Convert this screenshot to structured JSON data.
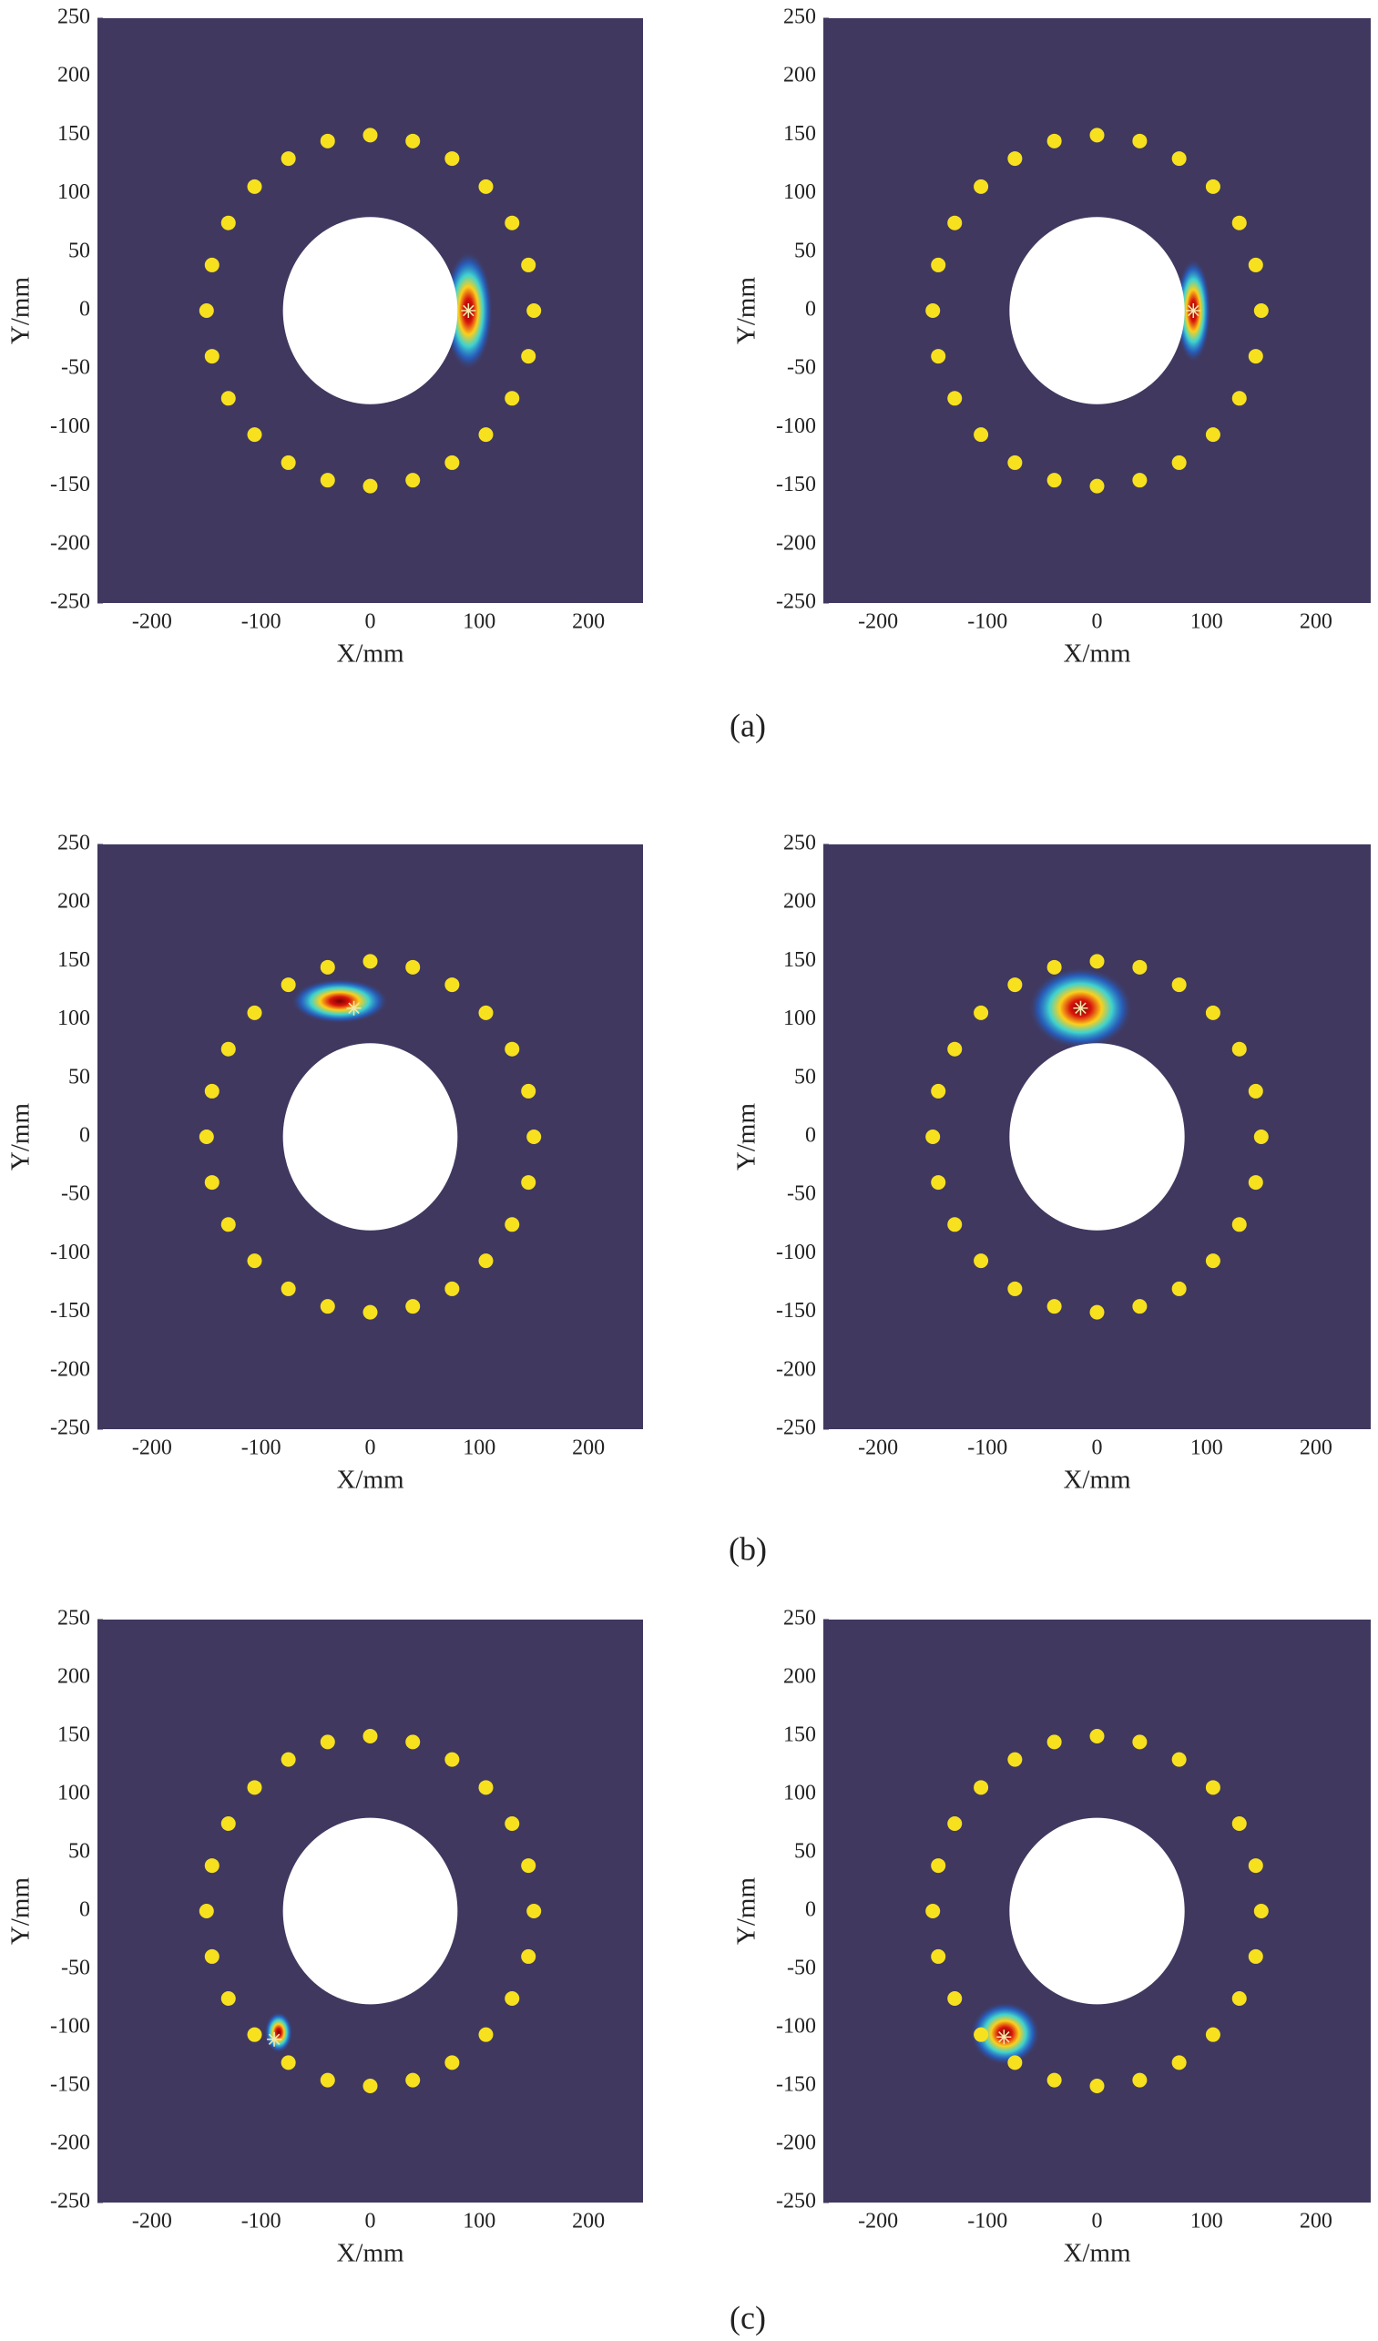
{
  "captions": [
    "(a)",
    "(b)",
    "(c)"
  ],
  "chart_data": [
    {
      "type": "heatmap",
      "xlabel": "X/mm",
      "ylabel": "Y/mm",
      "xlim": [
        -250,
        250
      ],
      "ylim": [
        -250,
        250
      ],
      "xticks": [
        -200,
        -100,
        0,
        100,
        200
      ],
      "yticks": [
        -250,
        -200,
        -150,
        -100,
        -50,
        0,
        50,
        100,
        150,
        200,
        250
      ],
      "background": "#40385f",
      "hole_radius": 80,
      "sensors": {
        "color": "#f7e11e",
        "x": [
          150,
          145,
          130,
          106,
          75,
          39,
          0,
          -39,
          -75,
          -106,
          -130,
          -145,
          -150,
          -145,
          -130,
          -106,
          -75,
          -39,
          0,
          39,
          75,
          106,
          130,
          145
        ],
        "y": [
          0,
          39,
          75,
          106,
          130,
          145,
          150,
          145,
          130,
          106,
          75,
          39,
          0,
          -39,
          -75,
          -106,
          -130,
          -145,
          -150,
          -145,
          -130,
          -106,
          -75,
          -39
        ]
      },
      "peak": {
        "x": 90,
        "y": 0,
        "sx": 14,
        "sy": 32
      },
      "marker": {
        "x": 90,
        "y": 0
      }
    },
    {
      "type": "heatmap",
      "xlabel": "X/mm",
      "ylabel": "Y/mm",
      "xlim": [
        -250,
        250
      ],
      "ylim": [
        -250,
        250
      ],
      "xticks": [
        -200,
        -100,
        0,
        100,
        200
      ],
      "yticks": [
        -250,
        -200,
        -150,
        -100,
        -50,
        0,
        50,
        100,
        150,
        200,
        250
      ],
      "background": "#40385f",
      "hole_radius": 80,
      "sensors": {
        "color": "#f7e11e",
        "x": [
          150,
          145,
          130,
          106,
          75,
          39,
          0,
          -39,
          -75,
          -106,
          -130,
          -145,
          -150,
          -145,
          -130,
          -106,
          -75,
          -39,
          0,
          39,
          75,
          106,
          130,
          145
        ],
        "y": [
          0,
          39,
          75,
          106,
          130,
          145,
          150,
          145,
          130,
          106,
          75,
          39,
          0,
          -39,
          -75,
          -106,
          -130,
          -145,
          -150,
          -145,
          -130,
          -106,
          -75,
          -39
        ]
      },
      "peak": {
        "x": 88,
        "y": 0,
        "sx": 10,
        "sy": 28
      },
      "marker": {
        "x": 88,
        "y": 0
      }
    },
    {
      "type": "heatmap",
      "xlabel": "X/mm",
      "ylabel": "Y/mm",
      "xlim": [
        -250,
        250
      ],
      "ylim": [
        -250,
        250
      ],
      "xticks": [
        -200,
        -100,
        0,
        100,
        200
      ],
      "yticks": [
        -250,
        -200,
        -150,
        -100,
        -50,
        0,
        50,
        100,
        150,
        200,
        250
      ],
      "background": "#40385f",
      "hole_radius": 80,
      "sensors": {
        "color": "#f7e11e",
        "x": [
          150,
          145,
          130,
          106,
          75,
          39,
          0,
          -39,
          -75,
          -106,
          -130,
          -145,
          -150,
          -145,
          -130,
          -106,
          -75,
          -39,
          0,
          39,
          75,
          106,
          130,
          145
        ],
        "y": [
          0,
          39,
          75,
          106,
          130,
          145,
          150,
          145,
          130,
          106,
          75,
          39,
          0,
          -39,
          -75,
          -106,
          -130,
          -145,
          -150,
          -145,
          -130,
          -106,
          -75,
          -39
        ]
      },
      "peak": {
        "x": -28,
        "y": 116,
        "sx": 28,
        "sy": 12
      },
      "marker": {
        "x": -15,
        "y": 110
      }
    },
    {
      "type": "heatmap",
      "xlabel": "X/mm",
      "ylabel": "Y/mm",
      "xlim": [
        -250,
        250
      ],
      "ylim": [
        -250,
        250
      ],
      "xticks": [
        -200,
        -100,
        0,
        100,
        200
      ],
      "yticks": [
        -250,
        -200,
        -150,
        -100,
        -50,
        0,
        50,
        100,
        150,
        200,
        250
      ],
      "background": "#40385f",
      "hole_radius": 80,
      "sensors": {
        "color": "#f7e11e",
        "x": [
          150,
          145,
          130,
          106,
          75,
          39,
          0,
          -39,
          -75,
          -106,
          -130,
          -145,
          -150,
          -145,
          -130,
          -106,
          -75,
          -39,
          0,
          39,
          75,
          106,
          130,
          145
        ],
        "y": [
          0,
          39,
          75,
          106,
          130,
          145,
          150,
          145,
          130,
          106,
          75,
          39,
          0,
          -39,
          -75,
          -106,
          -130,
          -145,
          -150,
          -145,
          -130,
          -106,
          -75,
          -39
        ]
      },
      "peak": {
        "x": -15,
        "y": 110,
        "sx": 30,
        "sy": 22
      },
      "marker": {
        "x": -15,
        "y": 110
      }
    },
    {
      "type": "heatmap",
      "xlabel": "X/mm",
      "ylabel": "Y/mm",
      "xlim": [
        -250,
        250
      ],
      "ylim": [
        -250,
        250
      ],
      "xticks": [
        -200,
        -100,
        0,
        100,
        200
      ],
      "yticks": [
        -250,
        -200,
        -150,
        -100,
        -50,
        0,
        50,
        100,
        150,
        200,
        250
      ],
      "background": "#40385f",
      "hole_radius": 80,
      "sensors": {
        "color": "#f7e11e",
        "x": [
          150,
          145,
          130,
          106,
          75,
          39,
          0,
          -39,
          -75,
          -106,
          -130,
          -145,
          -150,
          -145,
          -130,
          -106,
          -75,
          -39,
          0,
          39,
          75,
          106,
          130,
          145
        ],
        "y": [
          0,
          39,
          75,
          106,
          130,
          145,
          150,
          145,
          130,
          106,
          75,
          39,
          0,
          -39,
          -75,
          -106,
          -130,
          -145,
          -150,
          -145,
          -130,
          -106,
          -75,
          -39
        ]
      },
      "peak": {
        "x": -84,
        "y": -104,
        "sx": 8,
        "sy": 11
      },
      "marker": {
        "x": -88,
        "y": -110
      }
    },
    {
      "type": "heatmap",
      "xlabel": "X/mm",
      "ylabel": "Y/mm",
      "xlim": [
        -250,
        250
      ],
      "ylim": [
        -250,
        250
      ],
      "xticks": [
        -200,
        -100,
        0,
        100,
        200
      ],
      "yticks": [
        -250,
        -200,
        -150,
        -100,
        -50,
        0,
        50,
        100,
        150,
        200,
        250
      ],
      "background": "#40385f",
      "hole_radius": 80,
      "sensors": {
        "color": "#f7e11e",
        "x": [
          150,
          145,
          130,
          106,
          75,
          39,
          0,
          -39,
          -75,
          -106,
          -130,
          -145,
          -150,
          -145,
          -130,
          -106,
          -75,
          -39,
          0,
          39,
          75,
          106,
          130,
          145
        ],
        "y": [
          0,
          39,
          75,
          106,
          130,
          145,
          150,
          145,
          130,
          106,
          75,
          39,
          0,
          -39,
          -75,
          -106,
          -130,
          -145,
          -150,
          -145,
          -130,
          -106,
          -75,
          -39
        ]
      },
      "peak": {
        "x": -84,
        "y": -105,
        "sx": 20,
        "sy": 17
      },
      "marker": {
        "x": -85,
        "y": -108
      }
    }
  ]
}
